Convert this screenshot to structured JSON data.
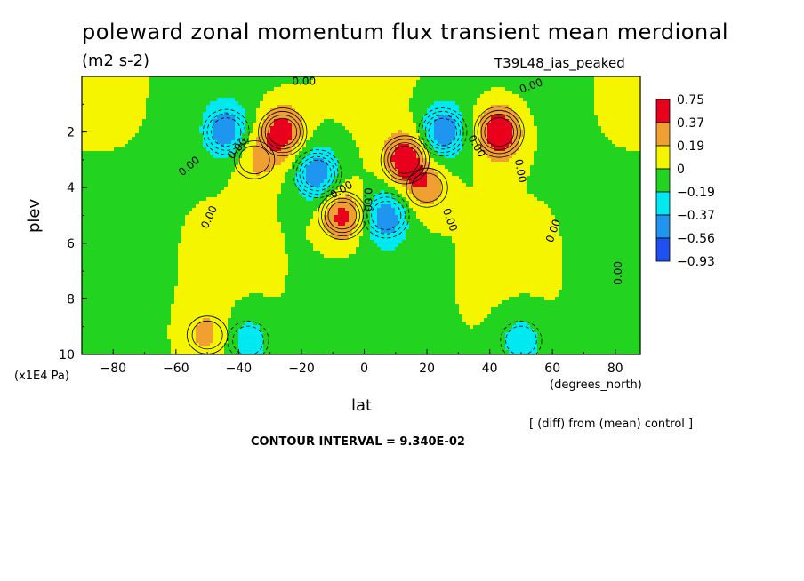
{
  "title": "poleward zonal momentum flux transient mean merdional",
  "units": "(m2 s-2)",
  "run_label": "T39L48_ias_peaked",
  "ylabel": "plev",
  "yunits": "(x1E4 Pa)",
  "xlabel": "lat",
  "xunits": "(degrees_north)",
  "diff_note": "[ (diff) from (mean) control ]",
  "contour_interval": "CONTOUR INTERVAL = 9.340E-02",
  "colors": {
    "red": "#e8001c",
    "orange": "#f0a030",
    "yellow": "#f5f500",
    "green": "#22d420",
    "cyan": "#00e8f0",
    "midblue": "#1e96f0",
    "blue": "#2050f0"
  },
  "chart_data": {
    "type": "heatmap",
    "title": "poleward zonal momentum flux transient mean merdional",
    "units": "(m2 s-2)",
    "xlabel": "lat",
    "ylabel": "plev",
    "xlim": [
      -90,
      88
    ],
    "ylim": [
      10,
      0
    ],
    "x_ticks": [
      -80,
      -60,
      -40,
      -20,
      0,
      20,
      40,
      60,
      80
    ],
    "y_ticks": [
      2,
      4,
      6,
      8,
      10
    ],
    "legend": {
      "placement": "right",
      "levels": [
        "0.75",
        "0.37",
        "0.19",
        "0",
        "-0.19",
        "-0.37",
        "-0.56",
        "-0.93"
      ],
      "colors": [
        "#e8001c",
        "#f0a030",
        "#f5f500",
        "#22d420",
        "#00e8f0",
        "#1e96f0",
        "#2050f0"
      ]
    },
    "contour_labels": [
      "0.00"
    ],
    "features": [
      {
        "kind": "max",
        "x": -26,
        "y": 2.0,
        "value": 0.5
      },
      {
        "kind": "max",
        "x": -35,
        "y": 3.0,
        "value": 0.25
      },
      {
        "kind": "max",
        "x": -7,
        "y": 5.0,
        "value": 0.5
      },
      {
        "kind": "max",
        "x": 13,
        "y": 3.0,
        "value": 0.5
      },
      {
        "kind": "max",
        "x": 20,
        "y": 4.0,
        "value": 0.3
      },
      {
        "kind": "max",
        "x": 43,
        "y": 2.0,
        "value": 0.6
      },
      {
        "kind": "max",
        "x": -50,
        "y": 9.3,
        "value": 0.25
      },
      {
        "kind": "min",
        "x": -44,
        "y": 2.0,
        "value": -0.45
      },
      {
        "kind": "min",
        "x": -15,
        "y": 3.5,
        "value": -0.5
      },
      {
        "kind": "min",
        "x": 7,
        "y": 5.0,
        "value": -0.45
      },
      {
        "kind": "min",
        "x": 25,
        "y": 2.0,
        "value": -0.5
      },
      {
        "kind": "min",
        "x": -37,
        "y": 9.5,
        "value": -0.3
      },
      {
        "kind": "min",
        "x": 50,
        "y": 9.5,
        "value": -0.3
      }
    ]
  }
}
